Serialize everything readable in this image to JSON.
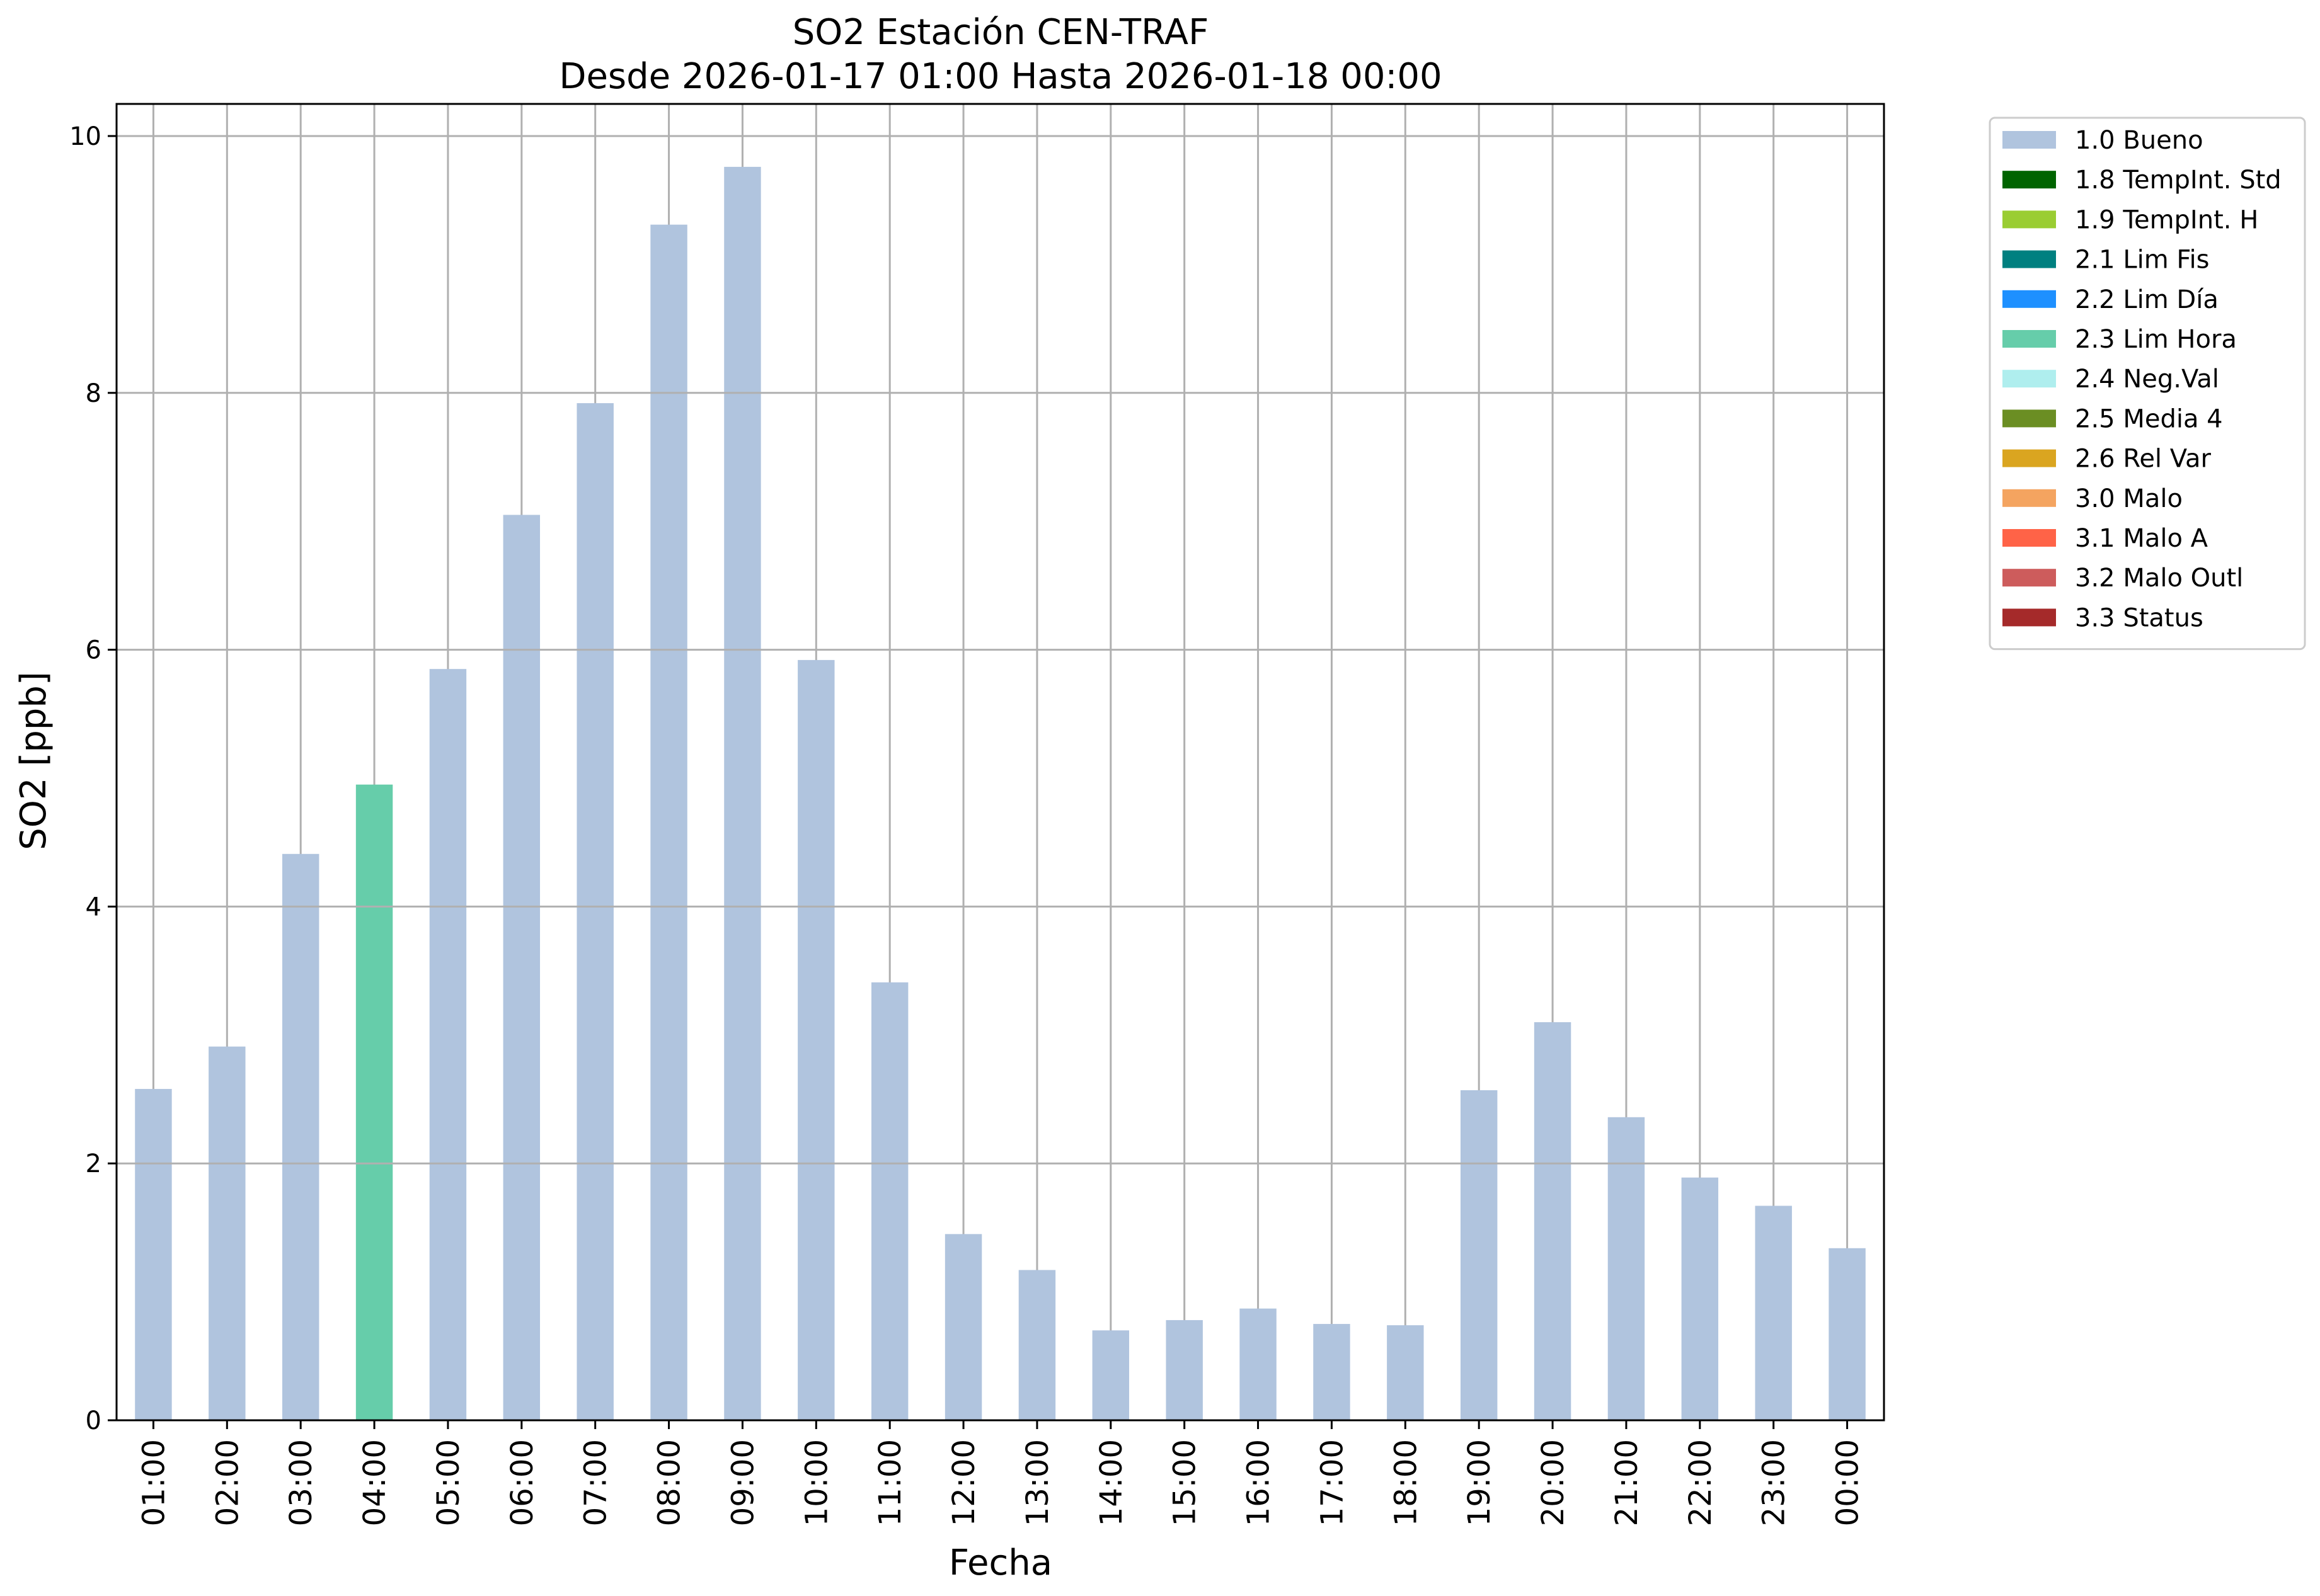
{
  "chart_data": {
    "type": "bar",
    "title": "SO2 Estación CEN-TRAF",
    "subtitle": "Desde 2026-01-17 01:00 Hasta 2026-01-18 00:00",
    "xlabel": "Fecha",
    "ylabel": "SO2 [ppb]",
    "ylim": [
      0,
      10.25
    ],
    "yticks": [
      0,
      2,
      4,
      6,
      8,
      10
    ],
    "grid": true,
    "legend_position": "outside-top-right",
    "categories": [
      "01:00",
      "02:00",
      "03:00",
      "04:00",
      "05:00",
      "06:00",
      "07:00",
      "08:00",
      "09:00",
      "10:00",
      "11:00",
      "12:00",
      "13:00",
      "14:00",
      "15:00",
      "16:00",
      "17:00",
      "18:00",
      "19:00",
      "20:00",
      "21:00",
      "22:00",
      "23:00",
      "00:00"
    ],
    "values": [
      2.58,
      2.91,
      4.41,
      4.95,
      5.85,
      7.05,
      7.92,
      9.31,
      9.76,
      5.92,
      3.41,
      1.45,
      1.17,
      0.7,
      0.78,
      0.87,
      0.75,
      0.74,
      2.57,
      3.1,
      2.36,
      1.89,
      1.67,
      1.34
    ],
    "flags": [
      "1.0 Bueno",
      "1.0 Bueno",
      "1.0 Bueno",
      "2.3 Lim Hora",
      "1.0 Bueno",
      "1.0 Bueno",
      "1.0 Bueno",
      "1.0 Bueno",
      "1.0 Bueno",
      "1.0 Bueno",
      "1.0 Bueno",
      "1.0 Bueno",
      "1.0 Bueno",
      "1.0 Bueno",
      "1.0 Bueno",
      "1.0 Bueno",
      "1.0 Bueno",
      "1.0 Bueno",
      "1.0 Bueno",
      "1.0 Bueno",
      "1.0 Bueno",
      "1.0 Bueno",
      "1.0 Bueno",
      "1.0 Bueno"
    ],
    "legend": [
      {
        "label": "1.0 Bueno",
        "color": "#b0c4de"
      },
      {
        "label": "1.8 TempInt. Std",
        "color": "#006400"
      },
      {
        "label": "1.9 TempInt. H",
        "color": "#9acd32"
      },
      {
        "label": "2.1 Lim Fis",
        "color": "#008080"
      },
      {
        "label": "2.2 Lim Día",
        "color": "#1e90ff"
      },
      {
        "label": "2.3 Lim Hora",
        "color": "#66cdaa"
      },
      {
        "label": "2.4 Neg.Val",
        "color": "#afeeee"
      },
      {
        "label": "2.5 Media 4",
        "color": "#6b8e23"
      },
      {
        "label": "2.6 Rel Var",
        "color": "#daa520"
      },
      {
        "label": "3.0 Malo",
        "color": "#f4a460"
      },
      {
        "label": "3.1 Malo A",
        "color": "#ff6347"
      },
      {
        "label": "3.2 Malo Outl",
        "color": "#cd5c5c"
      },
      {
        "label": "3.3 Status",
        "color": "#a52a2a"
      }
    ]
  }
}
